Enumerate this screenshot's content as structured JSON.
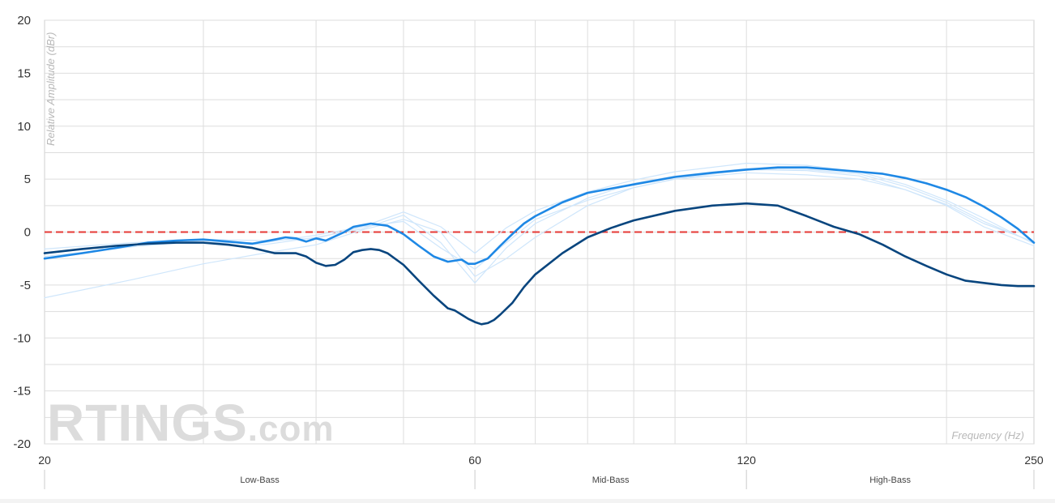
{
  "chart_data": {
    "type": "line",
    "xlabel": "Frequency (Hz)",
    "ylabel": "Relative Amplitude (dBr)",
    "x_scale": "log",
    "xlim": [
      20,
      250
    ],
    "ylim": [
      -20,
      20
    ],
    "x_ticks": [
      20,
      60,
      120,
      250
    ],
    "y_ticks": [
      20,
      15,
      10,
      5,
      0,
      -5,
      -10,
      -15,
      -20
    ],
    "grid": true,
    "reference_line": {
      "y": 0,
      "color": "#e53935",
      "style": "dashed"
    },
    "ranges": [
      {
        "label": "Low-Bass",
        "from": 20,
        "to": 60
      },
      {
        "label": "Mid-Bass",
        "from": 60,
        "to": 120
      },
      {
        "label": "High-Bass",
        "from": 120,
        "to": 250
      }
    ],
    "watermark": "RTINGS.com",
    "series": [
      {
        "color": "#cfe6fb",
        "width": 1.2,
        "x": [
          20,
          25,
          30,
          35,
          40,
          45,
          50,
          55,
          60,
          65,
          70,
          80,
          90,
          100,
          120,
          140,
          160,
          180,
          200,
          220,
          250
        ],
        "y": [
          -6.2,
          -4.5,
          -3.0,
          -2.0,
          -1.2,
          0.2,
          1.2,
          0.0,
          -4.2,
          -2.5,
          -0.5,
          2.5,
          4.2,
          5.0,
          5.6,
          5.4,
          5.0,
          4.0,
          2.5,
          0.5,
          -1.3
        ]
      },
      {
        "color": "#cfe6fb",
        "width": 1.2,
        "x": [
          20,
          25,
          30,
          35,
          40,
          45,
          50,
          55,
          60,
          65,
          70,
          80,
          90,
          100,
          120,
          140,
          160,
          180,
          200,
          220,
          250
        ],
        "y": [
          -1.6,
          -1.0,
          -0.7,
          -0.8,
          -0.6,
          0.5,
          1.9,
          0.5,
          -2.0,
          0.4,
          2.0,
          3.8,
          4.9,
          5.7,
          6.5,
          6.3,
          5.7,
          4.5,
          3.0,
          1.3,
          -1.1
        ]
      },
      {
        "color": "#cfe6fb",
        "width": 1.2,
        "x": [
          20,
          25,
          30,
          35,
          40,
          45,
          50,
          55,
          60,
          65,
          70,
          80,
          90,
          100,
          120,
          140,
          160,
          180,
          200,
          220,
          250
        ],
        "y": [
          -2.3,
          -1.4,
          -0.8,
          -1.2,
          -0.5,
          0.3,
          1.6,
          -1.0,
          -4.8,
          -1.5,
          0.8,
          3.2,
          4.6,
          5.3,
          6.0,
          5.9,
          5.5,
          4.3,
          2.8,
          1.0,
          -1.0
        ]
      },
      {
        "color": "#cfe6fb",
        "width": 1.2,
        "x": [
          20,
          25,
          30,
          35,
          40,
          45,
          50,
          55,
          60,
          65,
          70,
          80,
          90,
          100,
          120,
          140,
          160,
          180,
          200,
          220,
          250
        ],
        "y": [
          -2.0,
          -1.2,
          -1.0,
          -1.0,
          -0.3,
          0.5,
          1.0,
          -1.5,
          -3.5,
          -1.0,
          1.2,
          3.0,
          4.2,
          5.0,
          5.9,
          5.8,
          5.3,
          4.0,
          2.6,
          0.8,
          -0.9
        ]
      },
      {
        "color": "#1e88e5",
        "width": 2.6,
        "x": [
          20,
          22,
          24,
          26,
          28,
          30,
          32,
          34,
          36,
          37,
          38,
          39,
          40,
          41,
          42,
          43,
          44,
          46,
          48,
          50,
          52,
          54,
          56,
          58,
          59,
          60,
          62,
          64,
          66,
          68,
          70,
          75,
          80,
          90,
          100,
          110,
          120,
          130,
          140,
          150,
          160,
          170,
          180,
          190,
          200,
          210,
          220,
          230,
          240,
          250
        ],
        "y": [
          -2.5,
          -2.0,
          -1.5,
          -1.0,
          -0.8,
          -0.7,
          -0.9,
          -1.1,
          -0.7,
          -0.5,
          -0.6,
          -0.9,
          -0.6,
          -0.8,
          -0.4,
          0.0,
          0.5,
          0.8,
          0.6,
          -0.2,
          -1.3,
          -2.3,
          -2.8,
          -2.6,
          -3.0,
          -3.0,
          -2.5,
          -1.3,
          -0.2,
          0.8,
          1.5,
          2.8,
          3.7,
          4.5,
          5.2,
          5.6,
          5.9,
          6.1,
          6.1,
          5.9,
          5.7,
          5.5,
          5.1,
          4.6,
          4.0,
          3.3,
          2.4,
          1.4,
          0.3,
          -1.0
        ]
      },
      {
        "color": "#08457e",
        "width": 2.6,
        "x": [
          20,
          22,
          24,
          26,
          28,
          30,
          32,
          34,
          36,
          38,
          39,
          40,
          41,
          42,
          43,
          44,
          45,
          46,
          47,
          48,
          50,
          52,
          54,
          56,
          57,
          58,
          59,
          60,
          61,
          62,
          63,
          64,
          66,
          68,
          70,
          75,
          80,
          85,
          90,
          100,
          110,
          120,
          130,
          140,
          150,
          160,
          170,
          180,
          190,
          200,
          210,
          220,
          230,
          240,
          250
        ],
        "y": [
          -2.0,
          -1.6,
          -1.3,
          -1.1,
          -1.0,
          -1.0,
          -1.2,
          -1.5,
          -2.0,
          -2.0,
          -2.3,
          -2.9,
          -3.2,
          -3.1,
          -2.6,
          -1.9,
          -1.7,
          -1.6,
          -1.7,
          -2.0,
          -3.1,
          -4.6,
          -6.0,
          -7.2,
          -7.4,
          -7.8,
          -8.2,
          -8.5,
          -8.7,
          -8.6,
          -8.3,
          -7.8,
          -6.7,
          -5.2,
          -4.0,
          -2.0,
          -0.5,
          0.4,
          1.1,
          2.0,
          2.5,
          2.7,
          2.5,
          1.5,
          0.5,
          -0.2,
          -1.2,
          -2.3,
          -3.2,
          -4.0,
          -4.6,
          -4.8,
          -5.0,
          -5.1,
          -5.1
        ]
      }
    ]
  }
}
